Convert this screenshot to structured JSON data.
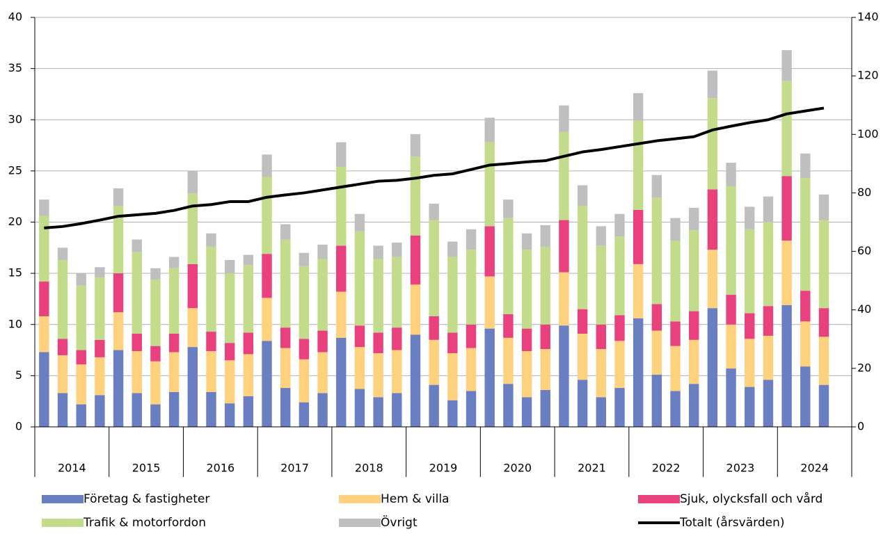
{
  "chart_data": {
    "type": "bar",
    "stacked": true,
    "categories": [
      null,
      null,
      null,
      null,
      null,
      null,
      null,
      null,
      null,
      null,
      null,
      null,
      null,
      null,
      null,
      null,
      null,
      null,
      null,
      null,
      null,
      null,
      null,
      null,
      null,
      null,
      null,
      null,
      null,
      null,
      null,
      null,
      null,
      null,
      null,
      null,
      null,
      null,
      null,
      null,
      null,
      null,
      null,
      null
    ],
    "year_groups": [
      "2014",
      "2015",
      "2016",
      "2017",
      "2018",
      "2019",
      "2020",
      "2021",
      "2022",
      "2023",
      "2024"
    ],
    "ylim": [
      0,
      40
    ],
    "yticks": [
      0,
      5,
      10,
      15,
      20,
      25,
      30,
      35,
      40
    ],
    "y2lim": [
      0,
      140
    ],
    "y2ticks": [
      0,
      20,
      40,
      60,
      80,
      100,
      120,
      140
    ],
    "grid": true,
    "series": [
      {
        "name": "Företag & fastigheter",
        "color": "#6a7fc1",
        "values": [
          7.3,
          3.3,
          2.2,
          3.1,
          7.5,
          3.3,
          2.2,
          3.4,
          7.8,
          3.4,
          2.3,
          3.0,
          8.4,
          3.8,
          2.4,
          3.3,
          8.7,
          3.7,
          2.9,
          3.3,
          9.0,
          4.1,
          2.6,
          3.5,
          9.6,
          4.2,
          2.9,
          3.6,
          9.9,
          4.6,
          2.9,
          3.8,
          10.6,
          5.1,
          3.5,
          4.2,
          11.6,
          5.7,
          3.9,
          4.6,
          11.9,
          5.9,
          4.1,
          null
        ]
      },
      {
        "name": "Hem & villa",
        "color": "#fdd17e",
        "values": [
          3.5,
          3.7,
          3.9,
          3.7,
          3.7,
          4.1,
          4.2,
          3.9,
          3.8,
          4.0,
          4.2,
          4.1,
          4.2,
          3.9,
          4.2,
          4.0,
          4.5,
          4.1,
          4.3,
          4.2,
          4.9,
          4.4,
          4.6,
          4.2,
          5.1,
          4.5,
          4.5,
          4.0,
          5.2,
          4.5,
          4.7,
          4.6,
          5.3,
          4.3,
          4.4,
          4.3,
          5.7,
          4.3,
          4.7,
          4.3,
          6.3,
          4.4,
          4.7,
          null
        ]
      },
      {
        "name": "Sjuk, olycksfall och vård",
        "color": "#e9407e",
        "values": [
          3.4,
          1.6,
          1.4,
          1.7,
          3.8,
          1.7,
          1.5,
          1.8,
          4.3,
          1.9,
          1.7,
          2.1,
          4.3,
          2.0,
          2.0,
          2.1,
          4.5,
          2.1,
          2.0,
          2.2,
          4.8,
          2.3,
          2.0,
          2.3,
          4.9,
          2.3,
          2.2,
          2.4,
          5.1,
          2.4,
          2.4,
          2.5,
          5.3,
          2.6,
          2.4,
          2.8,
          5.9,
          2.9,
          2.5,
          2.9,
          6.3,
          3.0,
          2.8,
          null
        ]
      },
      {
        "name": "Trafik & motorfordon",
        "color": "#c3dc8c",
        "values": [
          6.4,
          7.7,
          6.3,
          6.1,
          6.6,
          8.0,
          6.5,
          6.4,
          6.9,
          8.3,
          6.8,
          6.6,
          7.5,
          8.6,
          7.1,
          7.0,
          7.7,
          9.2,
          7.2,
          6.9,
          7.7,
          9.4,
          7.4,
          7.3,
          8.2,
          9.4,
          7.7,
          7.6,
          8.6,
          10.1,
          7.7,
          7.7,
          8.7,
          10.4,
          7.9,
          7.9,
          8.9,
          10.6,
          8.2,
          8.2,
          9.3,
          11.0,
          8.6,
          null
        ]
      },
      {
        "name": "Övrigt",
        "color": "#bfbfbf",
        "values": [
          1.6,
          1.2,
          1.2,
          1.0,
          1.7,
          1.2,
          1.1,
          1.1,
          2.2,
          1.3,
          1.3,
          1.0,
          2.2,
          1.5,
          1.3,
          1.4,
          2.4,
          1.7,
          1.3,
          1.4,
          2.2,
          1.6,
          1.5,
          2.0,
          2.4,
          1.8,
          1.6,
          2.1,
          2.6,
          2.0,
          1.9,
          2.2,
          2.7,
          2.2,
          2.2,
          2.2,
          2.7,
          2.3,
          2.2,
          2.5,
          3.0,
          2.4,
          2.5,
          null
        ]
      },
      {
        "name": "Totalt (årsvärden)",
        "color": "#000000",
        "type": "line",
        "axis": "y2",
        "values": [
          68,
          68.5,
          69.5,
          70.7,
          72,
          72.5,
          73,
          74,
          75.5,
          76,
          77,
          77,
          78.5,
          79.3,
          80,
          81,
          82,
          83,
          84,
          84.3,
          85,
          86,
          86.5,
          88,
          89.5,
          90,
          90.6,
          91,
          92.5,
          94,
          94.8,
          95.8,
          96.8,
          97.8,
          98.5,
          99.2,
          101.5,
          102.8,
          104,
          105,
          107,
          108,
          109,
          null
        ]
      }
    ]
  }
}
